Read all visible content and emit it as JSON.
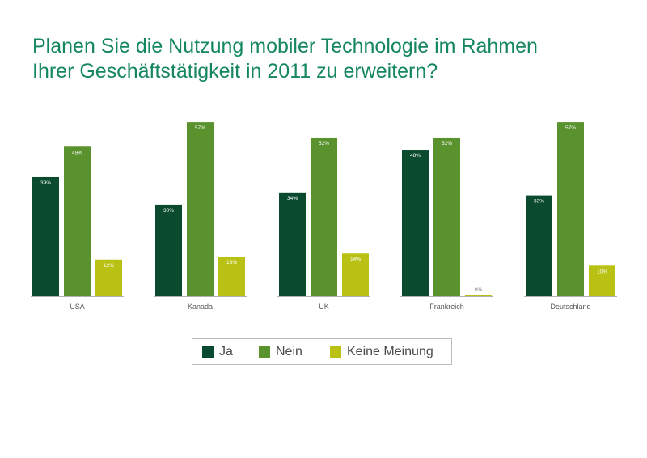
{
  "title_lines": [
    "Planen Sie die Nutzung mobiler Technologie im Rahmen",
    "Ihrer Geschäftstätigkeit in 2011 zu erweitern?"
  ],
  "colors": {
    "title": "#14875e",
    "Ja": "#0a4a2e",
    "Nein": "#5a922e",
    "Keine Meinung": "#b9c214",
    "axis": "#b0b0b0",
    "value_label_on_bar": "#ffffff",
    "value_label_outside": "#777777"
  },
  "chart_data": {
    "type": "bar",
    "title": "Planen Sie die Nutzung mobiler Technologie im Rahmen Ihrer Geschäftstätigkeit in 2011 zu erweitern?",
    "categories": [
      "USA",
      "Kanada",
      "UK",
      "Frankreich",
      "Deutschland"
    ],
    "series": [
      {
        "name": "Ja",
        "values": [
          39,
          30,
          34,
          48,
          33
        ],
        "labels": [
          "39%",
          "30%",
          "34%",
          "48%",
          "33%"
        ]
      },
      {
        "name": "Nein",
        "values": [
          49,
          57,
          52,
          52,
          57
        ],
        "labels": [
          "49%",
          "57%",
          "52%",
          "52%",
          "57%"
        ]
      },
      {
        "name": "Keine Meinung",
        "values": [
          12,
          13,
          14,
          0,
          10
        ],
        "labels": [
          "12%",
          "13%",
          "14%",
          "0%",
          "10%"
        ]
      }
    ],
    "xlabel": "",
    "ylabel": "",
    "ylim": [
      0,
      60
    ],
    "grid": false,
    "legend": "bottom-center"
  }
}
